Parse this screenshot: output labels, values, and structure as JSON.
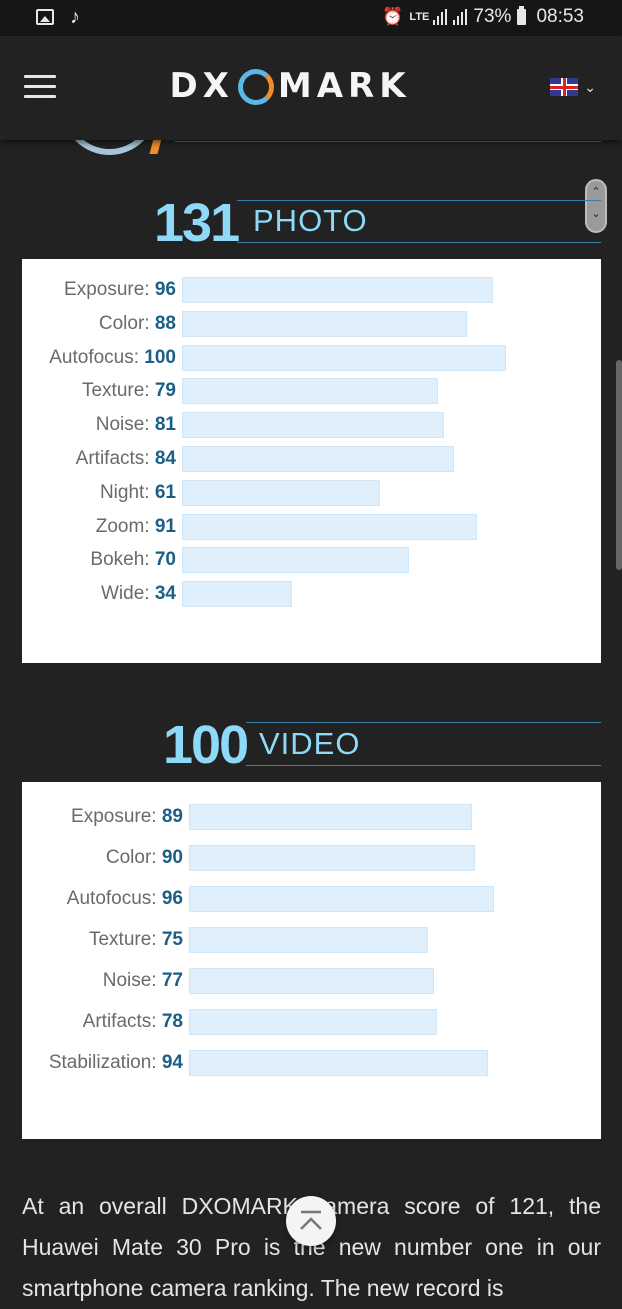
{
  "status_bar": {
    "network": "LTE",
    "battery": "73%",
    "time": "08:53"
  },
  "header": {
    "logo_left": "DX",
    "logo_right": "MARK",
    "menu_icon": "hamburger-icon",
    "language_icon": "uk-flag-icon"
  },
  "photo": {
    "score": "131",
    "label": "PHOTO",
    "rows": [
      {
        "name": "Exposure:",
        "value": 96
      },
      {
        "name": "Color:",
        "value": 88
      },
      {
        "name": "Autofocus:",
        "value": 100
      },
      {
        "name": "Texture:",
        "value": 79
      },
      {
        "name": "Noise:",
        "value": 81
      },
      {
        "name": "Artifacts:",
        "value": 84
      },
      {
        "name": "Night:",
        "value": 61
      },
      {
        "name": "Zoom:",
        "value": 91
      },
      {
        "name": "Bokeh:",
        "value": 70
      },
      {
        "name": "Wide:",
        "value": 34
      }
    ]
  },
  "video": {
    "score": "100",
    "label": "VIDEO",
    "rows": [
      {
        "name": "Exposure:",
        "value": 89
      },
      {
        "name": "Color:",
        "value": 90
      },
      {
        "name": "Autofocus:",
        "value": 96
      },
      {
        "name": "Texture:",
        "value": 75
      },
      {
        "name": "Noise:",
        "value": 77
      },
      {
        "name": "Artifacts:",
        "value": 78
      },
      {
        "name": "Stabilization:",
        "value": 94
      }
    ]
  },
  "article": {
    "text": "At an overall DXOMARK camera score of 121, the Huawei Mate 30 Pro is the new number one in our smartphone camera ranking. The new record is"
  },
  "colors": {
    "accent": "#8ed8f8",
    "bar_fill": "#dff0fc",
    "value_text": "#1b5f86",
    "background": "#222222"
  }
}
